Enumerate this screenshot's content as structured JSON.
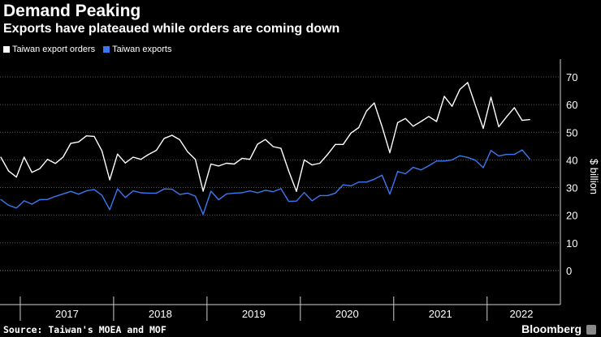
{
  "title": "Demand Peaking",
  "subtitle": "Exports have plateaued while orders are coming down",
  "source": "Source: Taiwan's MOEA and MOF",
  "brand": "Bloomberg",
  "colors": {
    "background": "#000000",
    "orders": "#ffffff",
    "exports": "#3a78f2",
    "grid": "#5a5a5a",
    "text": "#ffffff"
  },
  "chart_data": {
    "type": "line",
    "title": "Demand Peaking",
    "subtitle": "Exports have plateaued while orders are coming down",
    "ylabel": "$ billion",
    "xlabel": "",
    "ylim": [
      -10,
      75
    ],
    "yticks": [
      0,
      10,
      20,
      30,
      40,
      50,
      60,
      70
    ],
    "grid": true,
    "legend_position": "top-left",
    "year_labels": [
      "2017",
      "2018",
      "2019",
      "2020",
      "2021",
      "2022"
    ],
    "x_start": "2016-10",
    "series": [
      {
        "name": "Taiwan export orders",
        "values": [
          41.0,
          36.0,
          33.8,
          41.0,
          35.5,
          36.8,
          40.2,
          38.7,
          41.0,
          46.0,
          46.5,
          48.7,
          48.5,
          43.3,
          32.8,
          42.1,
          38.9,
          41.0,
          40.2,
          42.0,
          43.5,
          47.8,
          48.9,
          47.3,
          43.0,
          40.2,
          28.7,
          38.5,
          37.8,
          38.8,
          38.5,
          40.6,
          40.2,
          45.7,
          47.4,
          44.8,
          44.2,
          36.0,
          28.6,
          40.0,
          38.2,
          38.8,
          42.0,
          45.6,
          45.6,
          49.7,
          51.7,
          57.7,
          60.6,
          52.1,
          42.6,
          53.5,
          55.0,
          52.2,
          53.9,
          55.7,
          53.9,
          63.0,
          59.4,
          65.5,
          68.0,
          59.7,
          51.4,
          62.7,
          52.0,
          55.6,
          58.9,
          54.3,
          54.6
        ]
      },
      {
        "name": "Taiwan exports",
        "values": [
          25.7,
          23.6,
          22.6,
          25.2,
          24.0,
          25.6,
          25.7,
          26.8,
          27.7,
          28.6,
          27.6,
          28.8,
          29.3,
          27.2,
          22.0,
          29.5,
          26.4,
          28.8,
          28.1,
          28.0,
          28.0,
          29.5,
          29.4,
          27.5,
          28.0,
          26.9,
          20.3,
          28.7,
          25.6,
          27.7,
          28.0,
          28.1,
          28.8,
          28.1,
          29.0,
          28.5,
          29.6,
          25.0,
          25.1,
          28.2,
          25.2,
          27.1,
          27.1,
          28.0,
          31.0,
          30.6,
          32.0,
          32.0,
          33.0,
          34.5,
          27.6,
          35.8,
          35.0,
          37.3,
          36.4,
          37.9,
          39.6,
          39.6,
          40.0,
          41.5,
          40.9,
          39.9,
          37.2,
          43.4,
          41.4,
          42.0,
          42.0,
          43.6,
          40.3
        ]
      }
    ]
  }
}
